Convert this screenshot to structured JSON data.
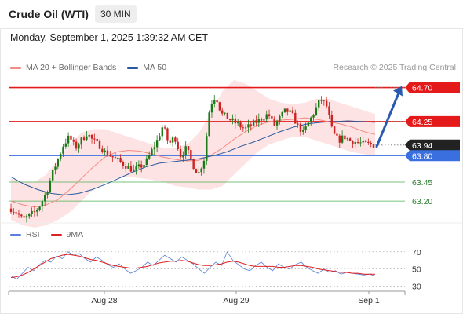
{
  "header": {
    "title": "Crude Oil (WTI)",
    "interval": "30 MIN",
    "timestamp": "Monday, September 1, 2025 1:39:32 AM CET",
    "credit": "Research © 2025 Trading Central"
  },
  "legend": {
    "items": [
      {
        "label": "MA 20 + Bollinger Bands",
        "color": "#f28b82"
      },
      {
        "label": "MA 50",
        "color": "#2a5a9e"
      }
    ]
  },
  "rsi_legend": {
    "items": [
      {
        "label": "RSI",
        "color": "#5b7fd4"
      },
      {
        "label": "9MA",
        "color": "#e02020"
      }
    ]
  },
  "colors": {
    "up": "#1a7a1a",
    "down": "#cc2222",
    "resistance": "#e41a1a",
    "pivot": "#3a6fe0",
    "support": "#4caf50",
    "last": "#222222",
    "ma50": "#2a5a9e",
    "ma20": "#f28b82",
    "band": "#fde0e0",
    "arrow": "#2a5ab0"
  },
  "chart_data": [
    {
      "type": "candlestick",
      "title": "Crude Oil (WTI)",
      "interval": "30 MIN",
      "x_ticks": [
        "Aug 28",
        "Aug 29",
        "Sep 1"
      ],
      "y_range": [
        62.9,
        64.82
      ],
      "last_price": 63.94,
      "levels": [
        {
          "label": "64.70",
          "value": 64.7,
          "kind": "resistance"
        },
        {
          "label": "64.25",
          "value": 64.25,
          "kind": "resistance"
        },
        {
          "label": "63.94",
          "value": 63.94,
          "kind": "last"
        },
        {
          "label": "63.80",
          "value": 63.8,
          "kind": "pivot"
        },
        {
          "label": "63.45",
          "value": 63.45,
          "kind": "support"
        },
        {
          "label": "63.20",
          "value": 63.2,
          "kind": "support"
        }
      ],
      "forecast_arrow": {
        "from": 63.92,
        "to": 64.7
      },
      "close_path": [
        63.1,
        63.05,
        62.95,
        63.0,
        63.05,
        63.15,
        63.3,
        63.55,
        63.75,
        63.95,
        64.05,
        63.9,
        64.0,
        64.1,
        64.0,
        63.95,
        63.85,
        63.8,
        63.75,
        63.7,
        63.65,
        63.6,
        63.65,
        63.7,
        63.85,
        64.0,
        64.2,
        63.95,
        64.05,
        63.8,
        63.9,
        63.7,
        63.55,
        63.75,
        64.45,
        64.6,
        64.35,
        64.3,
        64.25,
        64.2,
        64.15,
        64.2,
        64.25,
        64.3,
        64.35,
        64.2,
        64.3,
        64.4,
        64.35,
        64.2,
        64.1,
        64.25,
        64.4,
        64.55,
        64.45,
        64.1,
        64.0,
        64.05,
        64.0,
        63.98,
        63.96,
        63.95,
        63.94
      ],
      "ma50_path": [
        63.52,
        63.42,
        63.35,
        63.3,
        63.28,
        63.3,
        63.35,
        63.42,
        63.5,
        63.58,
        63.65,
        63.7,
        63.72,
        63.74,
        63.76,
        63.8,
        63.85,
        63.92,
        63.98,
        64.05,
        64.12,
        64.18,
        64.22,
        64.24,
        64.25,
        64.26,
        64.25,
        64.24
      ],
      "ma20_path": [
        63.2,
        63.15,
        63.12,
        63.15,
        63.22,
        63.35,
        63.5,
        63.65,
        63.78,
        63.85,
        63.87,
        63.86,
        63.82,
        63.78,
        63.75,
        63.73,
        63.74,
        63.8,
        63.9,
        64.02,
        64.12,
        64.2,
        64.25,
        64.27,
        64.28,
        64.3,
        64.28,
        64.25,
        64.22,
        64.18,
        64.12,
        64.08
      ],
      "band_upper": [
        63.5,
        63.45,
        63.45,
        63.55,
        63.75,
        63.95,
        64.1,
        64.15,
        64.15,
        64.1,
        64.05,
        64.0,
        63.95,
        63.9,
        63.9,
        63.95,
        64.1,
        64.35,
        64.65,
        64.8,
        64.75,
        64.65,
        64.55,
        64.5,
        64.48,
        64.5,
        64.55,
        64.55,
        64.5,
        64.45,
        64.4,
        64.35
      ],
      "band_lower": [
        62.95,
        62.88,
        62.85,
        62.88,
        62.95,
        63.05,
        63.2,
        63.35,
        63.45,
        63.5,
        63.52,
        63.5,
        63.48,
        63.45,
        63.4,
        63.38,
        63.35,
        63.35,
        63.4,
        63.55,
        63.7,
        63.85,
        63.95,
        64.0,
        64.05,
        64.05,
        64.0,
        63.95,
        63.9,
        63.85,
        63.82,
        63.8
      ]
    },
    {
      "type": "line",
      "title": "RSI",
      "y_ticks": [
        30,
        50,
        70
      ],
      "y_range": [
        25,
        78
      ],
      "series": [
        {
          "name": "RSI",
          "values": [
            42,
            38,
            45,
            52,
            48,
            55,
            60,
            58,
            65,
            62,
            70,
            66,
            68,
            62,
            58,
            64,
            60,
            55,
            52,
            56,
            50,
            45,
            48,
            52,
            58,
            54,
            60,
            66,
            62,
            58,
            64,
            60,
            56,
            50,
            45,
            52,
            58,
            54,
            70,
            60,
            55,
            50,
            48,
            54,
            58,
            52,
            48,
            56,
            52,
            50,
            55,
            58,
            52,
            48,
            45,
            50,
            46,
            48,
            44,
            46,
            45,
            44,
            43,
            44,
            42
          ]
        },
        {
          "name": "9MA",
          "values": [
            40,
            41,
            43,
            46,
            50,
            54,
            58,
            62,
            64,
            66,
            67,
            66,
            65,
            63,
            61,
            60,
            58,
            56,
            54,
            53,
            52,
            51,
            51,
            52,
            53,
            55,
            57,
            58,
            59,
            59,
            60,
            59,
            57,
            55,
            54,
            54,
            55,
            56,
            58,
            59,
            58,
            56,
            54,
            53,
            53,
            53,
            53,
            52,
            52,
            53,
            54,
            54,
            53,
            52,
            50,
            49,
            48,
            47,
            46,
            46,
            45,
            45,
            44,
            44,
            44
          ]
        }
      ]
    }
  ]
}
